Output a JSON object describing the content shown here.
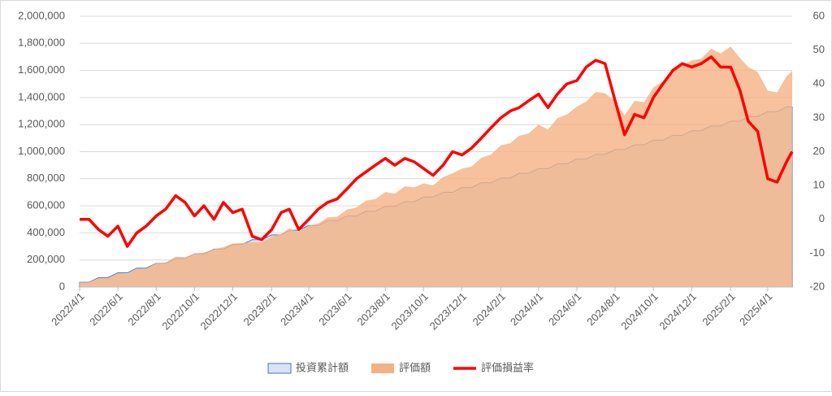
{
  "chart_data": {
    "type": "combo",
    "x": [
      "2022/4/1",
      "2022/4/16",
      "2022/5/1",
      "2022/5/16",
      "2022/6/1",
      "2022/6/16",
      "2022/7/1",
      "2022/7/16",
      "2022/8/1",
      "2022/8/16",
      "2022/9/1",
      "2022/9/16",
      "2022/10/1",
      "2022/10/16",
      "2022/11/1",
      "2022/11/16",
      "2022/12/1",
      "2022/12/16",
      "2023/1/1",
      "2023/1/16",
      "2023/2/1",
      "2023/2/16",
      "2023/3/1",
      "2023/3/16",
      "2023/4/1",
      "2023/4/16",
      "2023/5/1",
      "2023/5/16",
      "2023/6/1",
      "2023/6/16",
      "2023/7/1",
      "2023/7/16",
      "2023/8/1",
      "2023/8/16",
      "2023/9/1",
      "2023/9/16",
      "2023/10/1",
      "2023/10/16",
      "2023/11/1",
      "2023/11/16",
      "2023/12/1",
      "2023/12/16",
      "2024/1/1",
      "2024/1/16",
      "2024/2/1",
      "2024/2/16",
      "2024/3/1",
      "2024/3/16",
      "2024/4/1",
      "2024/4/16",
      "2024/5/1",
      "2024/5/16",
      "2024/6/1",
      "2024/6/16",
      "2024/7/1",
      "2024/7/16",
      "2024/8/1",
      "2024/8/16",
      "2024/9/1",
      "2024/9/16",
      "2024/10/1",
      "2024/10/16",
      "2024/11/1",
      "2024/11/16",
      "2024/12/1",
      "2024/12/16",
      "2025/1/1",
      "2025/1/16",
      "2025/2/1",
      "2025/2/16",
      "2025/3/1",
      "2025/3/16",
      "2025/4/1",
      "2025/4/16",
      "2025/5/1",
      "2025/5/10"
    ],
    "series": [
      {
        "name": "投資累計額",
        "kind": "area",
        "color": "#dae3f3",
        "edge": "#4472c4",
        "values": [
          35000,
          35000,
          70000,
          70000,
          105000,
          105000,
          140000,
          140000,
          175000,
          175000,
          210000,
          210000,
          245000,
          245000,
          280000,
          280000,
          315000,
          315000,
          350000,
          350000,
          385000,
          385000,
          420000,
          420000,
          455000,
          455000,
          490000,
          490000,
          525000,
          525000,
          560000,
          560000,
          595000,
          595000,
          630000,
          630000,
          665000,
          665000,
          700000,
          700000,
          735000,
          735000,
          770000,
          770000,
          805000,
          805000,
          840000,
          840000,
          875000,
          875000,
          910000,
          910000,
          945000,
          945000,
          980000,
          980000,
          1015000,
          1015000,
          1050000,
          1050000,
          1085000,
          1085000,
          1120000,
          1120000,
          1155000,
          1155000,
          1190000,
          1190000,
          1225000,
          1225000,
          1260000,
          1260000,
          1295000,
          1295000,
          1330000,
          1330000
        ]
      },
      {
        "name": "評価額",
        "kind": "area",
        "color": "#f4b183",
        "values": [
          35000,
          35000,
          67900,
          66500,
          102900,
          96600,
          134400,
          137200,
          176750,
          180250,
          224700,
          220500,
          247450,
          254800,
          280000,
          294000,
          321300,
          324450,
          332500,
          329000,
          373450,
          392700,
          432600,
          407400,
          455000,
          468650,
          514500,
          519400,
          572250,
          588000,
          638400,
          649600,
          702100,
          690200,
          743400,
          737100,
          764750,
          751450,
          812000,
          840000,
          874650,
          889350,
          954800,
          977900,
          1046500,
          1062600,
          1117200,
          1134000,
          1198750,
          1163750,
          1246700,
          1274000,
          1332450,
          1370250,
          1440600,
          1430800,
          1370250,
          1268750,
          1375500,
          1365000,
          1475600,
          1519000,
          1612800,
          1635200,
          1674750,
          1686300,
          1761200,
          1725500,
          1776250,
          1690500,
          1625400,
          1587600,
          1450400,
          1437450,
          1556100,
          1596000
        ]
      },
      {
        "name": "評価損益率",
        "kind": "line",
        "axis": "y2",
        "color": "#ff0000",
        "values": [
          0,
          0,
          -3,
          -5,
          -2,
          -8,
          -4,
          -2,
          1,
          3,
          7,
          5,
          1,
          4,
          0,
          5,
          2,
          3,
          -5,
          -6,
          -3,
          2,
          3,
          -3,
          0,
          3,
          5,
          6,
          9,
          12,
          14,
          16,
          18,
          16,
          18,
          17,
          15,
          13,
          16,
          20,
          19,
          21,
          24,
          27,
          30,
          32,
          33,
          35,
          37,
          33,
          37,
          40,
          41,
          45,
          47,
          46,
          35,
          25,
          31,
          30,
          36,
          40,
          44,
          46,
          45,
          46,
          48,
          45,
          45,
          38,
          29,
          26,
          12,
          11,
          17,
          20
        ]
      }
    ],
    "xlim": [
      "2022/4/1",
      "2025/5/10"
    ],
    "xticks": [
      "2022/4/1",
      "2022/6/1",
      "2022/8/1",
      "2022/10/1",
      "2022/12/1",
      "2023/2/1",
      "2023/4/1",
      "2023/6/1",
      "2023/8/1",
      "2023/10/1",
      "2023/12/1",
      "2024/2/1",
      "2024/4/1",
      "2024/6/1",
      "2024/8/1",
      "2024/10/1",
      "2024/12/1",
      "2025/2/1",
      "2025/4/1"
    ],
    "ylim": [
      0,
      2000000
    ],
    "yticks": [
      0,
      {
        "value": 200000,
        "label": "200,000"
      },
      {
        "value": 400000,
        "label": "400,000"
      },
      {
        "value": 600000,
        "label": "600,000"
      },
      {
        "value": 800000,
        "label": "800,000"
      },
      {
        "value": 1000000,
        "label": "1,000,000"
      },
      {
        "value": 1200000,
        "label": "1,200,000"
      },
      {
        "value": 1400000,
        "label": "1,400,000"
      },
      {
        "value": 1600000,
        "label": "1,600,000"
      },
      {
        "value": 1800000,
        "label": "1,800,000"
      },
      {
        "value": 2000000,
        "label": "2,000,000"
      }
    ],
    "y2lim": [
      -20,
      60
    ],
    "y2ticks": [
      -20,
      -10,
      0,
      10,
      20,
      30,
      40,
      50,
      60
    ],
    "grid": true
  }
}
